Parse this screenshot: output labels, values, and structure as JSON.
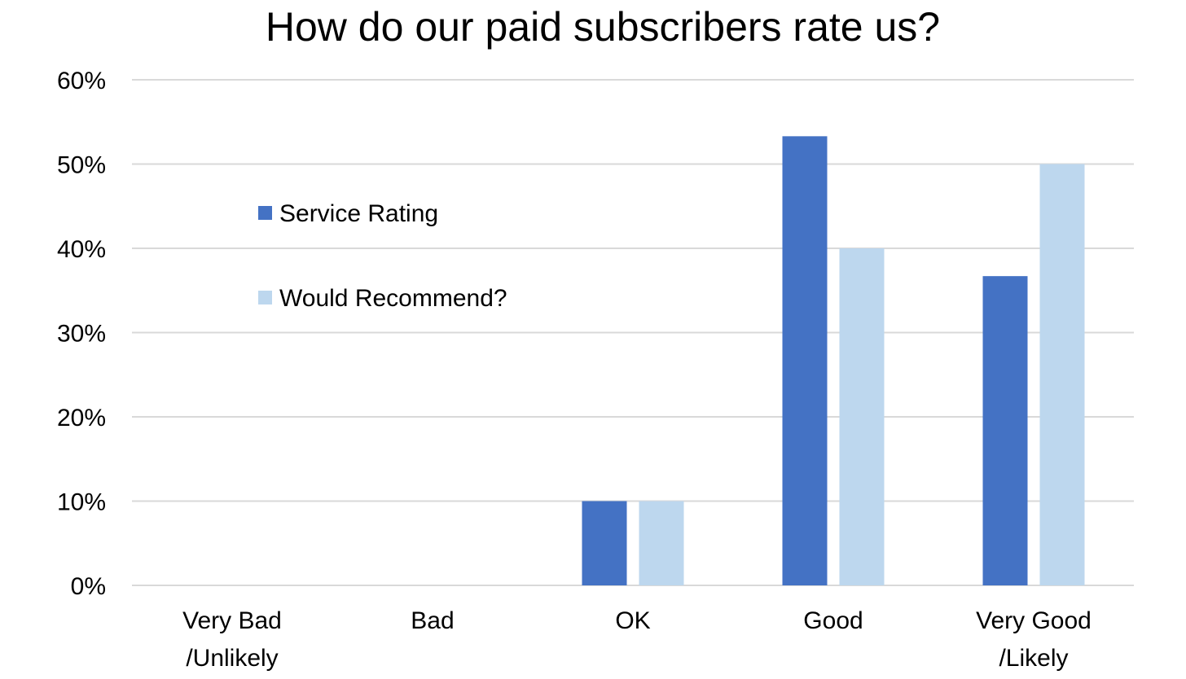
{
  "chart_data": {
    "type": "bar",
    "title": "How do our paid subscribers rate us?",
    "categories": [
      [
        "Very Bad",
        "/Unlikely"
      ],
      [
        "Bad"
      ],
      [
        "OK"
      ],
      [
        "Good"
      ],
      [
        "Very Good",
        "/Likely"
      ]
    ],
    "series": [
      {
        "name": "Service Rating",
        "color": "#4472C4",
        "values": [
          0,
          0,
          0.1,
          0.533,
          0.367
        ]
      },
      {
        "name": "Would Recommend?",
        "color": "#BDD7EE",
        "values": [
          0,
          0,
          0.1,
          0.4,
          0.5
        ]
      }
    ],
    "ylim": [
      0,
      0.6
    ],
    "yticks": [
      "0%",
      "10%",
      "20%",
      "30%",
      "40%",
      "50%",
      "60%"
    ],
    "grid": true,
    "legend_position": "upper-left inside plot"
  }
}
